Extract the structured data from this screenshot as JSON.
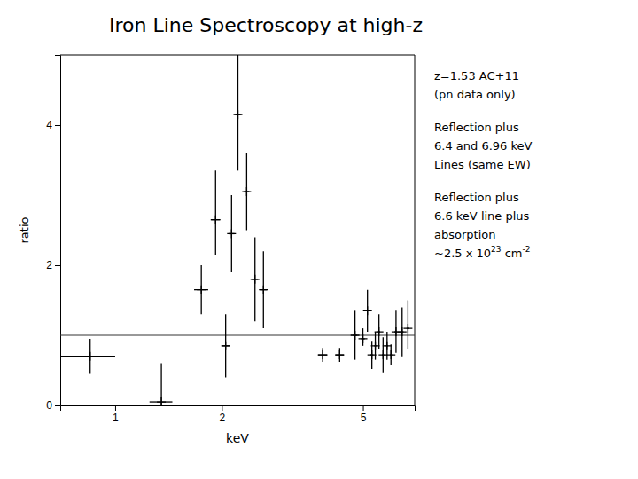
{
  "chart_data": {
    "type": "scatter",
    "title": "Iron Line Spectroscopy at high-z",
    "x_label": "keV",
    "y_label": "ratio",
    "log": "x",
    "grid": false,
    "marker": "plus",
    "color": "black",
    "xlim": [
      0.7,
      7.0
    ],
    "ylim": [
      0,
      5.0
    ],
    "xticks": [
      1,
      2,
      5
    ],
    "yticks": [
      0,
      2,
      4
    ],
    "hline_y": 1.0,
    "x": [
      0.85,
      1.35,
      1.75,
      1.92,
      2.05,
      2.13,
      2.22,
      2.35,
      2.48,
      2.62,
      3.85,
      4.3,
      4.75,
      5.0,
      5.15,
      5.3,
      5.42,
      5.55,
      5.7,
      5.85,
      6.0,
      6.2,
      6.45,
      6.7
    ],
    "values": [
      0.7,
      0.05,
      1.65,
      2.65,
      0.85,
      2.45,
      4.15,
      3.05,
      1.8,
      1.65,
      0.72,
      0.72,
      1.0,
      0.95,
      1.35,
      0.72,
      0.85,
      1.05,
      0.72,
      0.85,
      0.72,
      1.05,
      1.05,
      1.1
    ],
    "xerr": [
      0.15,
      0.1,
      0.08,
      0.06,
      0.05,
      0.04,
      0.04,
      0.04,
      0.05,
      0.06,
      0.12,
      0.12,
      0.06,
      0.06,
      0.05,
      0.05,
      0.04,
      0.04,
      0.04,
      0.04,
      0.04,
      0.06,
      0.06,
      0.06
    ],
    "yerr_lo": [
      0.25,
      0.05,
      0.35,
      0.5,
      0.45,
      0.55,
      0.8,
      0.55,
      0.6,
      0.55,
      0.1,
      0.1,
      0.35,
      0.1,
      0.3,
      0.2,
      0.2,
      0.25,
      0.25,
      0.2,
      0.15,
      0.3,
      0.35,
      0.3
    ],
    "yerr_hi": [
      0.25,
      0.55,
      0.35,
      0.7,
      0.45,
      0.55,
      0.85,
      0.55,
      0.6,
      0.55,
      0.1,
      0.1,
      0.35,
      0.15,
      0.3,
      0.2,
      0.2,
      0.25,
      0.25,
      0.2,
      0.15,
      0.3,
      0.35,
      0.4
    ],
    "annotations": [
      [
        "z=1.53 AC+11",
        "(pn data only)"
      ],
      [
        "Reflection plus",
        "6.4 and 6.96 keV",
        "Lines (same EW)"
      ],
      [
        "Reflection plus",
        "6.6 keV line plus",
        "absorption",
        [
          "~2.5 x 10",
          "23",
          " cm",
          "-2"
        ]
      ]
    ]
  }
}
